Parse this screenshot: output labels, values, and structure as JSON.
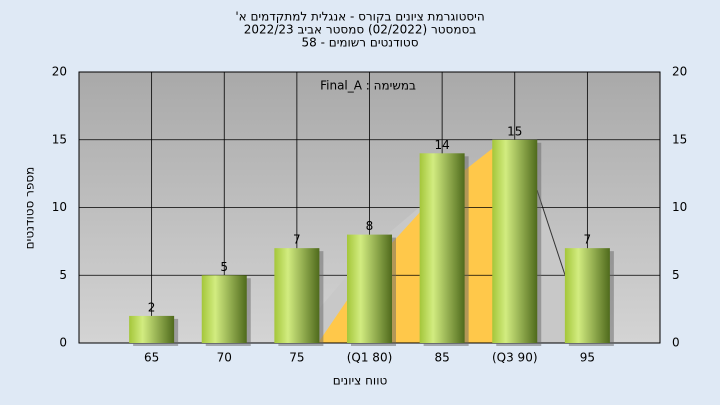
{
  "chart_data": {
    "type": "bar",
    "title": "היסטוגרמת ציונים בקורס - אנגלית למתקדמים א'",
    "subtitle": "בסמסטר (02/2022) סמסטר אביב 2022/23",
    "subtitle2": "סטודנטים רשומים - 58",
    "annotation": "במשימה : Final_A",
    "x_label": "טווח ציונים",
    "y_label": "מספר סטודנטים",
    "categories": [
      "65",
      "70",
      "75",
      "(Q1 80)",
      "85",
      "(Q3 90)",
      "95"
    ],
    "values": [
      2,
      5,
      7,
      8,
      14,
      15,
      7
    ],
    "ylim": [
      0,
      20
    ],
    "yticks": [
      0,
      5,
      10,
      15,
      20
    ],
    "grid": true
  }
}
